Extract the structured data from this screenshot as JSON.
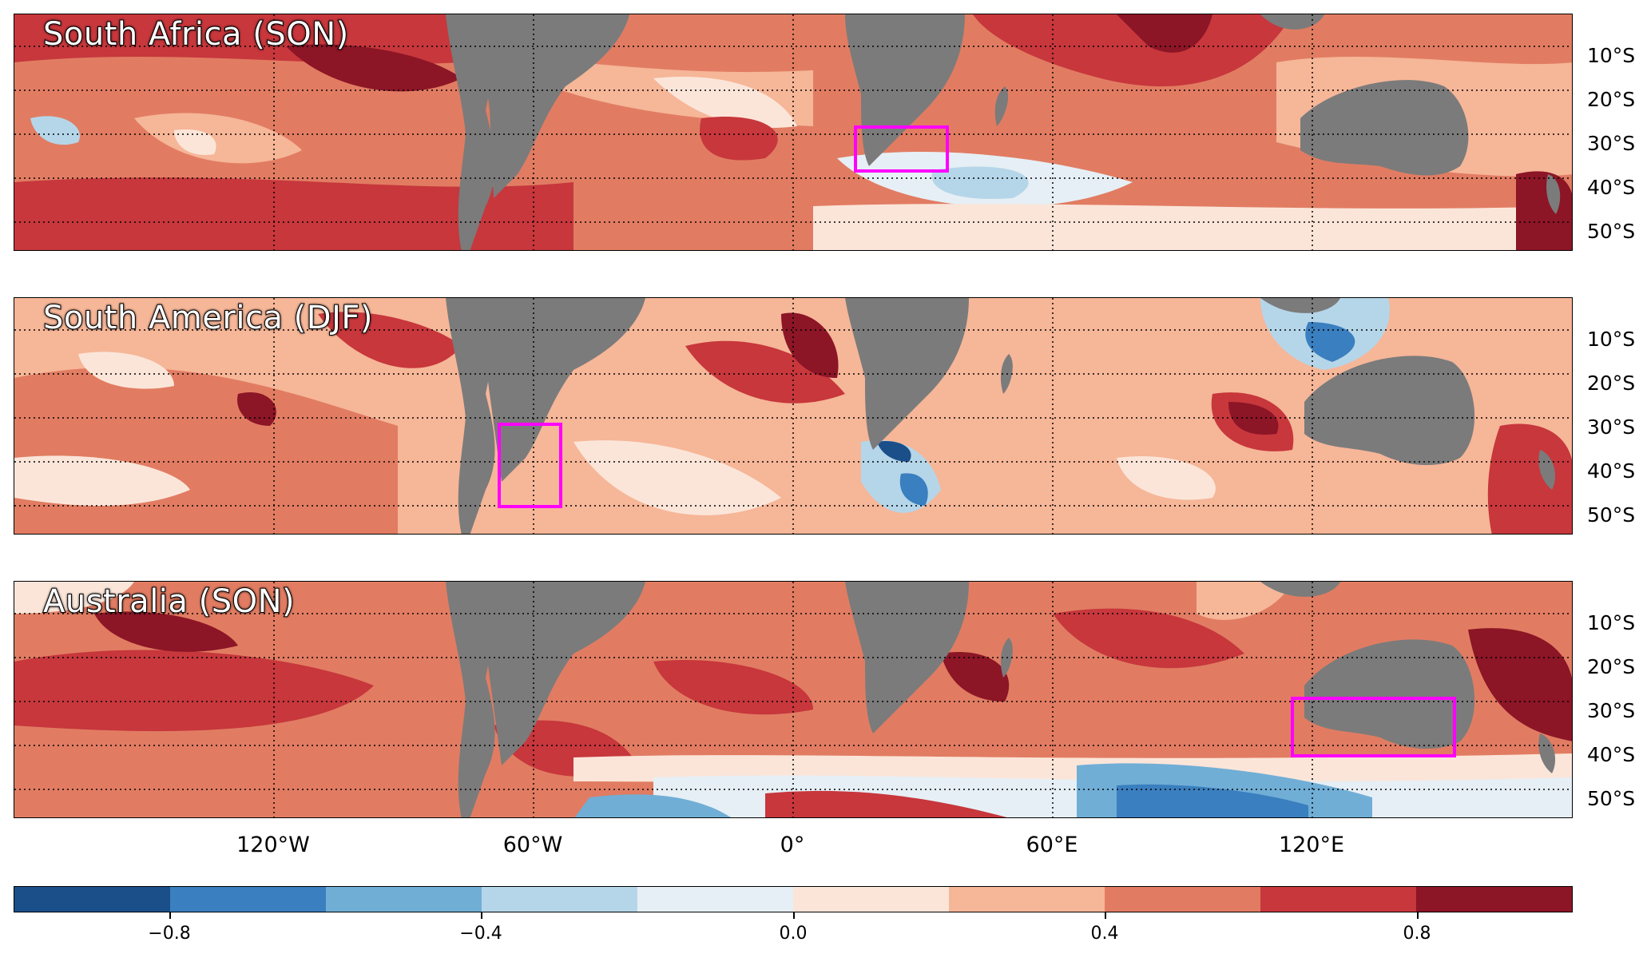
{
  "panels": [
    {
      "title": "South Africa (SON)",
      "region": "south-africa"
    },
    {
      "title": "South America (DJF)",
      "region": "south-america"
    },
    {
      "title": "Australia (SON)",
      "region": "australia"
    }
  ],
  "lat_labels": [
    "10°S",
    "20°S",
    "30°S",
    "40°S",
    "50°S"
  ],
  "lon_labels": [
    "120°W",
    "60°W",
    "0°",
    "60°E",
    "120°E"
  ],
  "colorbar": {
    "tick_labels": [
      "−0.8",
      "−0.4",
      "0.0",
      "0.4",
      "0.8"
    ],
    "colors": [
      "#1a4f8a",
      "#3a7fbf",
      "#70aed6",
      "#b5d6e9",
      "#e6eff5",
      "#fbe5d9",
      "#f6b698",
      "#e17c62",
      "#c7373c",
      "#8c1526"
    ]
  },
  "colors": {
    "land": "#7b7b7b",
    "box": "#ff00ff",
    "background": "#e17c62"
  }
}
